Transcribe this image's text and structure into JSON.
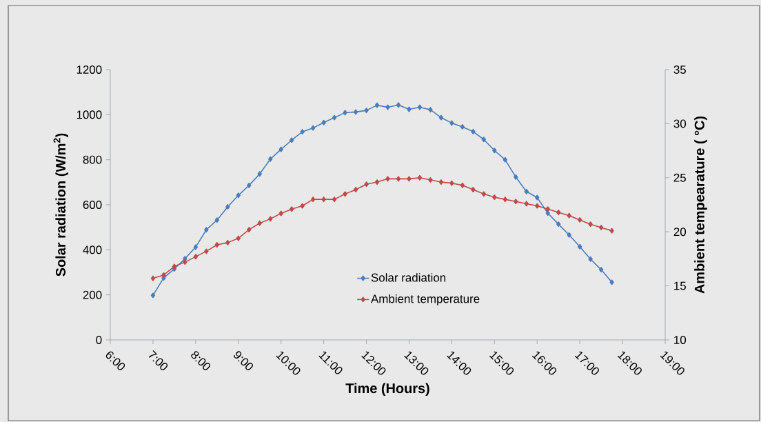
{
  "chart_data": {
    "type": "line",
    "xlabel": "Time (Hours)",
    "ylabel": "Solar radiation (W/m$^{2}$)",
    "y2label": "Ambient tempearature ( °C)",
    "x": [
      7,
      7.25,
      7.5,
      7.75,
      8,
      8.25,
      8.5,
      8.75,
      9,
      9.25,
      9.5,
      9.75,
      10,
      10.25,
      10.5,
      10.75,
      11,
      11.25,
      11.5,
      11.75,
      12,
      12.25,
      12.5,
      12.75,
      13,
      13.25,
      13.5,
      13.75,
      14,
      14.25,
      14.5,
      14.75,
      15,
      15.25,
      15.5,
      15.75,
      16,
      16.25,
      16.5,
      16.75,
      17,
      17.25,
      17.5,
      17.75
    ],
    "series": [
      {
        "name": "Solar radiation",
        "color": "#4a7ebb",
        "values": [
          198,
          275,
          315,
          361,
          412,
          489,
          532,
          591,
          642,
          686,
          737,
          803,
          846,
          887,
          924,
          941,
          965,
          987,
          1009,
          1012,
          1019,
          1042,
          1033,
          1043,
          1024,
          1033,
          1022,
          987,
          963,
          946,
          925,
          890,
          841,
          800,
          723,
          659,
          632,
          563,
          514,
          466,
          414,
          359,
          312,
          256
        ]
      },
      {
        "name": "Ambient temperature",
        "color": "#be4b48",
        "axis": "y2",
        "values": [
          15.7,
          16.0,
          16.8,
          17.2,
          17.7,
          18.2,
          18.8,
          19.0,
          19.4,
          20.2,
          20.8,
          21.2,
          21.7,
          22.1,
          22.4,
          23.0,
          23.0,
          23.0,
          23.5,
          23.9,
          24.4,
          24.6,
          24.9,
          24.9,
          24.9,
          25.0,
          24.8,
          24.6,
          24.5,
          24.3,
          23.9,
          23.5,
          23.2,
          23.0,
          22.8,
          22.6,
          22.4,
          22.1,
          21.8,
          21.5,
          21.1,
          20.7,
          20.4,
          20.1
        ]
      }
    ],
    "xlim": [
      6,
      19
    ],
    "xticks": [
      {
        "value": 6,
        "label": "6:00"
      },
      {
        "value": 7,
        "label": "7:00"
      },
      {
        "value": 8,
        "label": "8:00"
      },
      {
        "value": 9,
        "label": "9:00"
      },
      {
        "value": 10,
        "label": "10:00"
      },
      {
        "value": 11,
        "label": "11:00"
      },
      {
        "value": 12,
        "label": "12:00"
      },
      {
        "value": 13,
        "label": "13:00"
      },
      {
        "value": 14,
        "label": "14:00"
      },
      {
        "value": 15,
        "label": "15:00"
      },
      {
        "value": 16,
        "label": "16:00"
      },
      {
        "value": 17,
        "label": "17:00"
      },
      {
        "value": 18,
        "label": "18:00"
      },
      {
        "value": 19,
        "label": "19:00"
      }
    ],
    "ylim": [
      0,
      1200
    ],
    "yticks": [
      0,
      200,
      400,
      600,
      800,
      1000,
      1200
    ],
    "y2lim": [
      10,
      35
    ],
    "y2ticks": [
      10,
      15,
      20,
      25,
      30,
      35
    ],
    "grid": false,
    "legend": "bottom",
    "marker": "diamond",
    "line_style": "solid"
  }
}
